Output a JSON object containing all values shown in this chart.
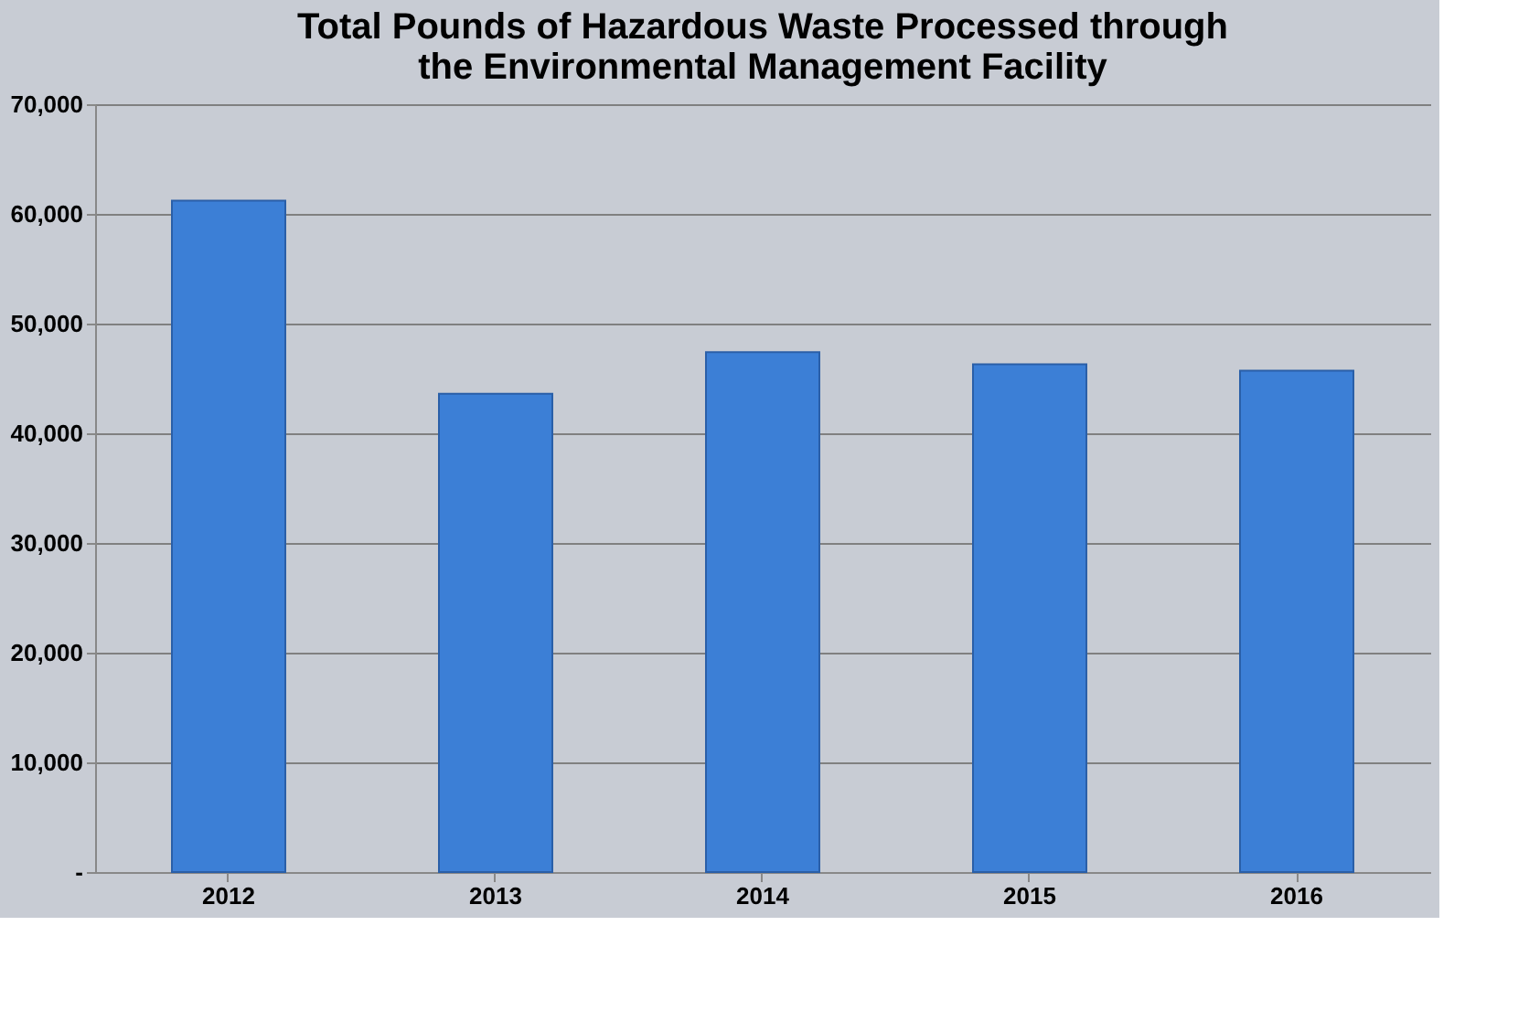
{
  "chart_data": {
    "type": "bar",
    "title": "Total Pounds of Hazardous Waste Processed through the Environmental Management Facility",
    "categories": [
      "2012",
      "2013",
      "2014",
      "2015",
      "2016"
    ],
    "values": [
      61200,
      43600,
      47400,
      46300,
      45700
    ],
    "color": "#3c7fd6",
    "ylim": [
      0,
      70000
    ],
    "yticks": [
      {
        "value": 0,
        "label": "-"
      },
      {
        "value": 10000,
        "label": "10,000"
      },
      {
        "value": 20000,
        "label": "20,000"
      },
      {
        "value": 30000,
        "label": "30,000"
      },
      {
        "value": 40000,
        "label": "40,000"
      },
      {
        "value": 50000,
        "label": "50,000"
      },
      {
        "value": 60000,
        "label": "60,000"
      },
      {
        "value": 70000,
        "label": "70,000"
      }
    ],
    "grid": true
  }
}
